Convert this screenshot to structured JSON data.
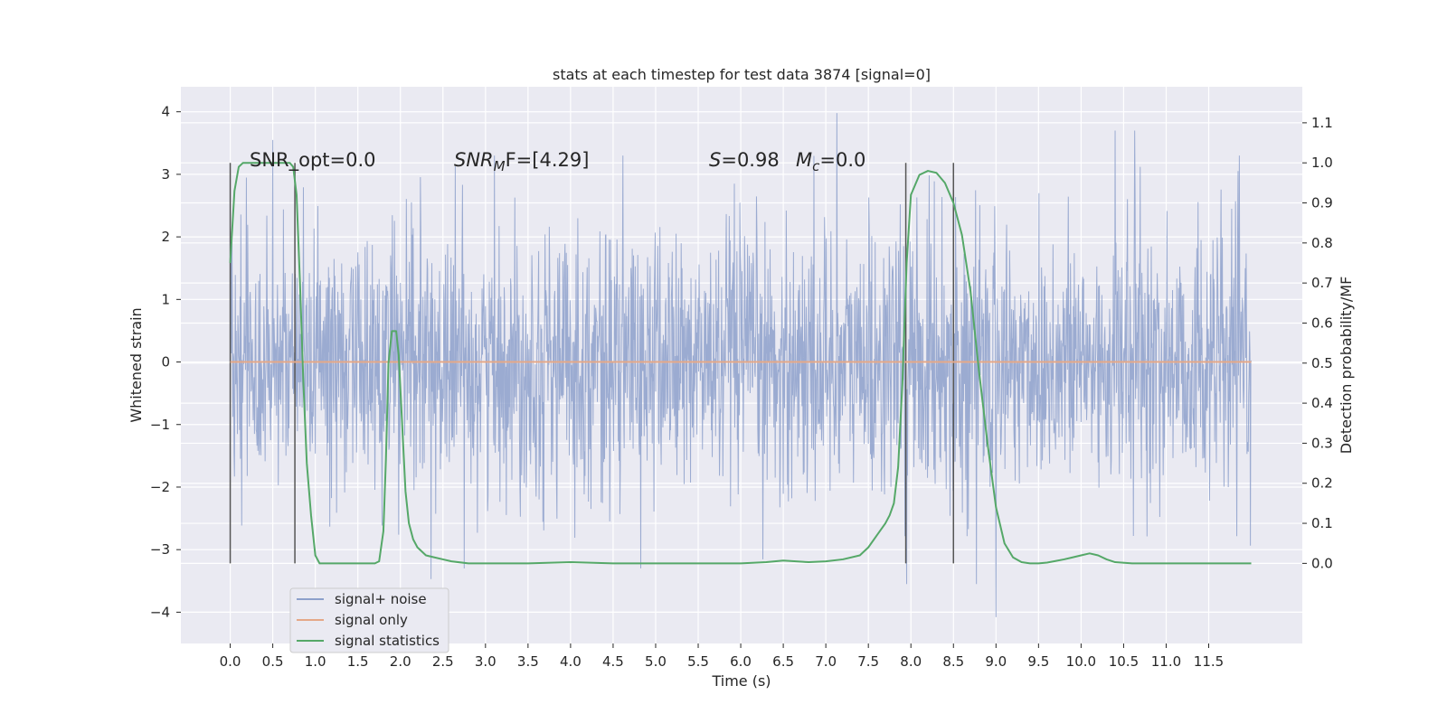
{
  "chart_data": {
    "type": "line",
    "title": "stats at each timestep for test data 3874 [signal=0]",
    "xlabel": "Time (s)",
    "ylabel": "Whitened strain",
    "ylabel_right": "Detection probability/MF",
    "xlim": [
      -0.58,
      12.6
    ],
    "ylim": [
      -4.5,
      4.4
    ],
    "ylim_right": [
      -0.2,
      1.19
    ],
    "x_ticks": [
      "0.0",
      "0.5",
      "1.0",
      "1.5",
      "2.0",
      "2.5",
      "3.0",
      "3.5",
      "4.0",
      "4.5",
      "5.0",
      "5.5",
      "6.0",
      "6.5",
      "7.0",
      "7.5",
      "8.0",
      "8.5",
      "9.0",
      "9.5",
      "10.0",
      "10.5",
      "11.0",
      "11.5"
    ],
    "y_ticks": [
      "4",
      "3",
      "2",
      "1",
      "0",
      "−1",
      "−2",
      "−3",
      "−4"
    ],
    "y_ticks_right": [
      "1.1",
      "1.0",
      "0.9",
      "0.8",
      "0.7",
      "0.6",
      "0.5",
      "0.4",
      "0.3",
      "0.2",
      "0.1",
      "0.0"
    ],
    "grid": true,
    "legend_position": "lower-left",
    "annotations": {
      "snr_opt": "SNR_opt=0.0",
      "snr_mf_base": "SNR",
      "snr_mf_sub": "M",
      "snr_mf_tail": "F=[4.29]",
      "s_var": "S",
      "s_val": "=0.98",
      "mc_base": "M",
      "mc_sub": "c",
      "mc_val": "=0.0"
    },
    "vertical_markers": [
      0.0,
      0.76,
      7.94,
      8.5
    ],
    "series": [
      {
        "name": "signal+ noise",
        "axis": "left",
        "color": "#8da0cb",
        "description_range": [
          0.0,
          12.0
        ],
        "noise_std": 1.05,
        "peaks": [
          [
            0.5,
            3.55
          ],
          [
            7.13,
            3.98
          ],
          [
            10.4,
            3.7
          ],
          [
            10.63,
            3.7
          ],
          [
            2.36,
            -3.47
          ],
          [
            9.0,
            -4.08
          ],
          [
            7.95,
            -3.55
          ],
          [
            8.77,
            -3.55
          ]
        ]
      },
      {
        "name": "signal only",
        "axis": "left",
        "color": "#e5a888",
        "x": [
          0.0,
          12.0
        ],
        "y": [
          0.0,
          0.0
        ]
      },
      {
        "name": "signal statistics",
        "axis": "right",
        "color": "#55a868",
        "x": [
          0.0,
          0.05,
          0.1,
          0.15,
          0.2,
          0.3,
          0.4,
          0.5,
          0.6,
          0.7,
          0.74,
          0.78,
          0.82,
          0.86,
          0.9,
          0.95,
          1.0,
          1.05,
          1.1,
          1.2,
          1.3,
          1.4,
          1.5,
          1.6,
          1.7,
          1.75,
          1.8,
          1.83,
          1.86,
          1.9,
          1.95,
          1.98,
          2.02,
          2.06,
          2.1,
          2.15,
          2.2,
          2.3,
          2.4,
          2.5,
          2.6,
          2.8,
          3.0,
          3.5,
          4.0,
          4.5,
          5.0,
          5.5,
          6.0,
          6.3,
          6.5,
          6.8,
          7.0,
          7.2,
          7.4,
          7.5,
          7.6,
          7.7,
          7.75,
          7.8,
          7.85,
          7.9,
          7.95,
          8.0,
          8.1,
          8.2,
          8.3,
          8.4,
          8.5,
          8.6,
          8.7,
          8.8,
          8.9,
          9.0,
          9.1,
          9.2,
          9.3,
          9.4,
          9.5,
          9.6,
          9.7,
          9.8,
          9.9,
          10.0,
          10.1,
          10.2,
          10.3,
          10.4,
          10.6,
          10.8,
          11.0,
          11.5,
          12.0
        ],
        "y": [
          0.75,
          0.93,
          0.99,
          1.0,
          1.0,
          1.0,
          1.0,
          1.0,
          1.0,
          1.0,
          0.99,
          0.92,
          0.7,
          0.45,
          0.25,
          0.12,
          0.02,
          0.0,
          0.0,
          0.0,
          0.0,
          0.0,
          0.0,
          0.0,
          0.0,
          0.005,
          0.08,
          0.26,
          0.5,
          0.58,
          0.58,
          0.52,
          0.35,
          0.18,
          0.1,
          0.06,
          0.04,
          0.02,
          0.015,
          0.01,
          0.005,
          0.0,
          0.0,
          0.0,
          0.003,
          0.0,
          0.0,
          0.0,
          0.0,
          0.003,
          0.007,
          0.003,
          0.005,
          0.01,
          0.02,
          0.04,
          0.07,
          0.1,
          0.12,
          0.15,
          0.24,
          0.45,
          0.75,
          0.92,
          0.97,
          0.98,
          0.975,
          0.95,
          0.9,
          0.82,
          0.68,
          0.48,
          0.3,
          0.14,
          0.05,
          0.015,
          0.003,
          0.0,
          0.0,
          0.002,
          0.006,
          0.01,
          0.015,
          0.02,
          0.025,
          0.02,
          0.01,
          0.003,
          0.0,
          0.0,
          0.0,
          0.0,
          0.0
        ]
      }
    ]
  }
}
